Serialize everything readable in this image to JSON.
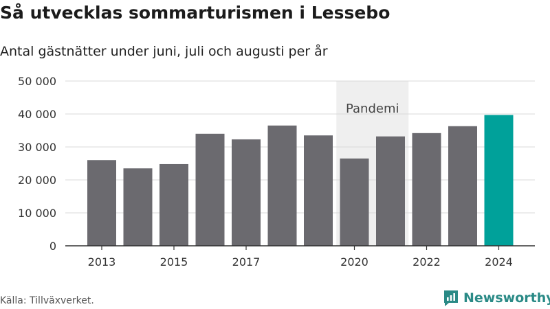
{
  "header": {
    "title": "Så utvecklas sommarturismen i Lessebo",
    "subtitle": "Antal gästnätter under juni, juli och augusti per år"
  },
  "footer": {
    "source": "Källa: Tillväxverket.",
    "brand": "Newsworthy"
  },
  "colors": {
    "bar": "#6b6a6f",
    "highlight": "#00a19a",
    "grid": "#d9d9d9",
    "shade": "#efefef"
  },
  "chart_data": {
    "type": "bar",
    "categories": [
      "2013",
      "2014",
      "2015",
      "2016",
      "2017",
      "2018",
      "2019",
      "2020",
      "2021",
      "2022",
      "2023",
      "2024"
    ],
    "values": [
      26000,
      23500,
      24800,
      34000,
      32300,
      36500,
      33500,
      26500,
      33200,
      34200,
      36300,
      39700
    ],
    "highlight_category": "2024",
    "x_tick_labels": [
      "2013",
      "2015",
      "2017",
      "2020",
      "2022",
      "2024"
    ],
    "y_ticks": [
      0,
      10000,
      20000,
      30000,
      40000,
      50000
    ],
    "y_tick_labels": [
      "0",
      "10 000",
      "20 000",
      "30 000",
      "40 000",
      "50 000"
    ],
    "ylim": [
      0,
      50000
    ],
    "grid": true,
    "annotation": {
      "label": "Pandemi",
      "from": "2020",
      "to": "2021"
    }
  }
}
